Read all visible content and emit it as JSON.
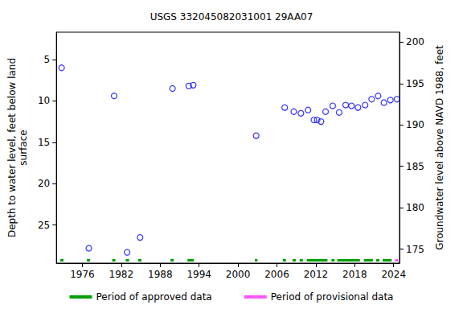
{
  "chart_data": {
    "type": "scatter",
    "title": "USGS 332045082031001 29AA07",
    "y_label": "Depth to water level, feet below land\nsurface",
    "y2_label": "Groundwater level above NAVD 1988, feet",
    "x": [
      1972.8,
      1977.0,
      1980.9,
      1982.9,
      1984.9,
      1989.9,
      1992.4,
      1993.1,
      2002.8,
      2007.2,
      2008.6,
      2009.7,
      2010.8,
      2011.7,
      2012.2,
      2012.8,
      2013.5,
      2014.6,
      2015.6,
      2016.6,
      2017.5,
      2018.5,
      2019.6,
      2020.6,
      2021.6,
      2022.5,
      2023.5,
      2024.5
    ],
    "values": [
      6.0,
      27.8,
      9.4,
      28.3,
      26.5,
      8.5,
      8.2,
      8.1,
      14.2,
      10.8,
      11.3,
      11.5,
      11.1,
      12.3,
      12.3,
      12.5,
      11.3,
      10.6,
      11.4,
      10.5,
      10.6,
      10.8,
      10.5,
      9.8,
      9.4,
      10.2,
      9.9,
      9.8
    ],
    "color": "#0000ff",
    "marker": "circle_open",
    "xlim": [
      1972,
      2024.9
    ],
    "xticks": [
      1976,
      1982,
      1988,
      1994,
      2000,
      2006,
      2012,
      2018,
      2024
    ],
    "ylim": [
      1.7,
      29.6
    ],
    "yticks": [
      5,
      10,
      15,
      20,
      25
    ],
    "y2lim": [
      173.3,
      201.2
    ],
    "y2ticks": [
      175,
      180,
      185,
      190,
      195,
      200
    ],
    "grid": false,
    "legend": "bottom",
    "periods": [
      {
        "name": "Period of approved data",
        "color": "#00a000",
        "ranges": [
          [
            1972.6,
            1973.1
          ],
          [
            1976.7,
            1977.2
          ],
          [
            1980.6,
            1981.1
          ],
          [
            1982.7,
            1983.2
          ],
          [
            1984.6,
            1985.1
          ],
          [
            1989.6,
            1990.1
          ],
          [
            1992.2,
            1993.2
          ],
          [
            2002.6,
            2003.0
          ],
          [
            2006.9,
            2007.4
          ],
          [
            2008.4,
            2008.9
          ],
          [
            2009.5,
            2010.0
          ],
          [
            2010.6,
            2013.8
          ],
          [
            2014.4,
            2014.9
          ],
          [
            2015.3,
            2018.8
          ],
          [
            2019.4,
            2020.8
          ],
          [
            2021.3,
            2021.8
          ],
          [
            2022.3,
            2023.7
          ]
        ]
      },
      {
        "name": "Period of provisional data",
        "color": "#ff55ff",
        "ranges": [
          [
            2024.2,
            2024.7
          ]
        ]
      }
    ]
  }
}
